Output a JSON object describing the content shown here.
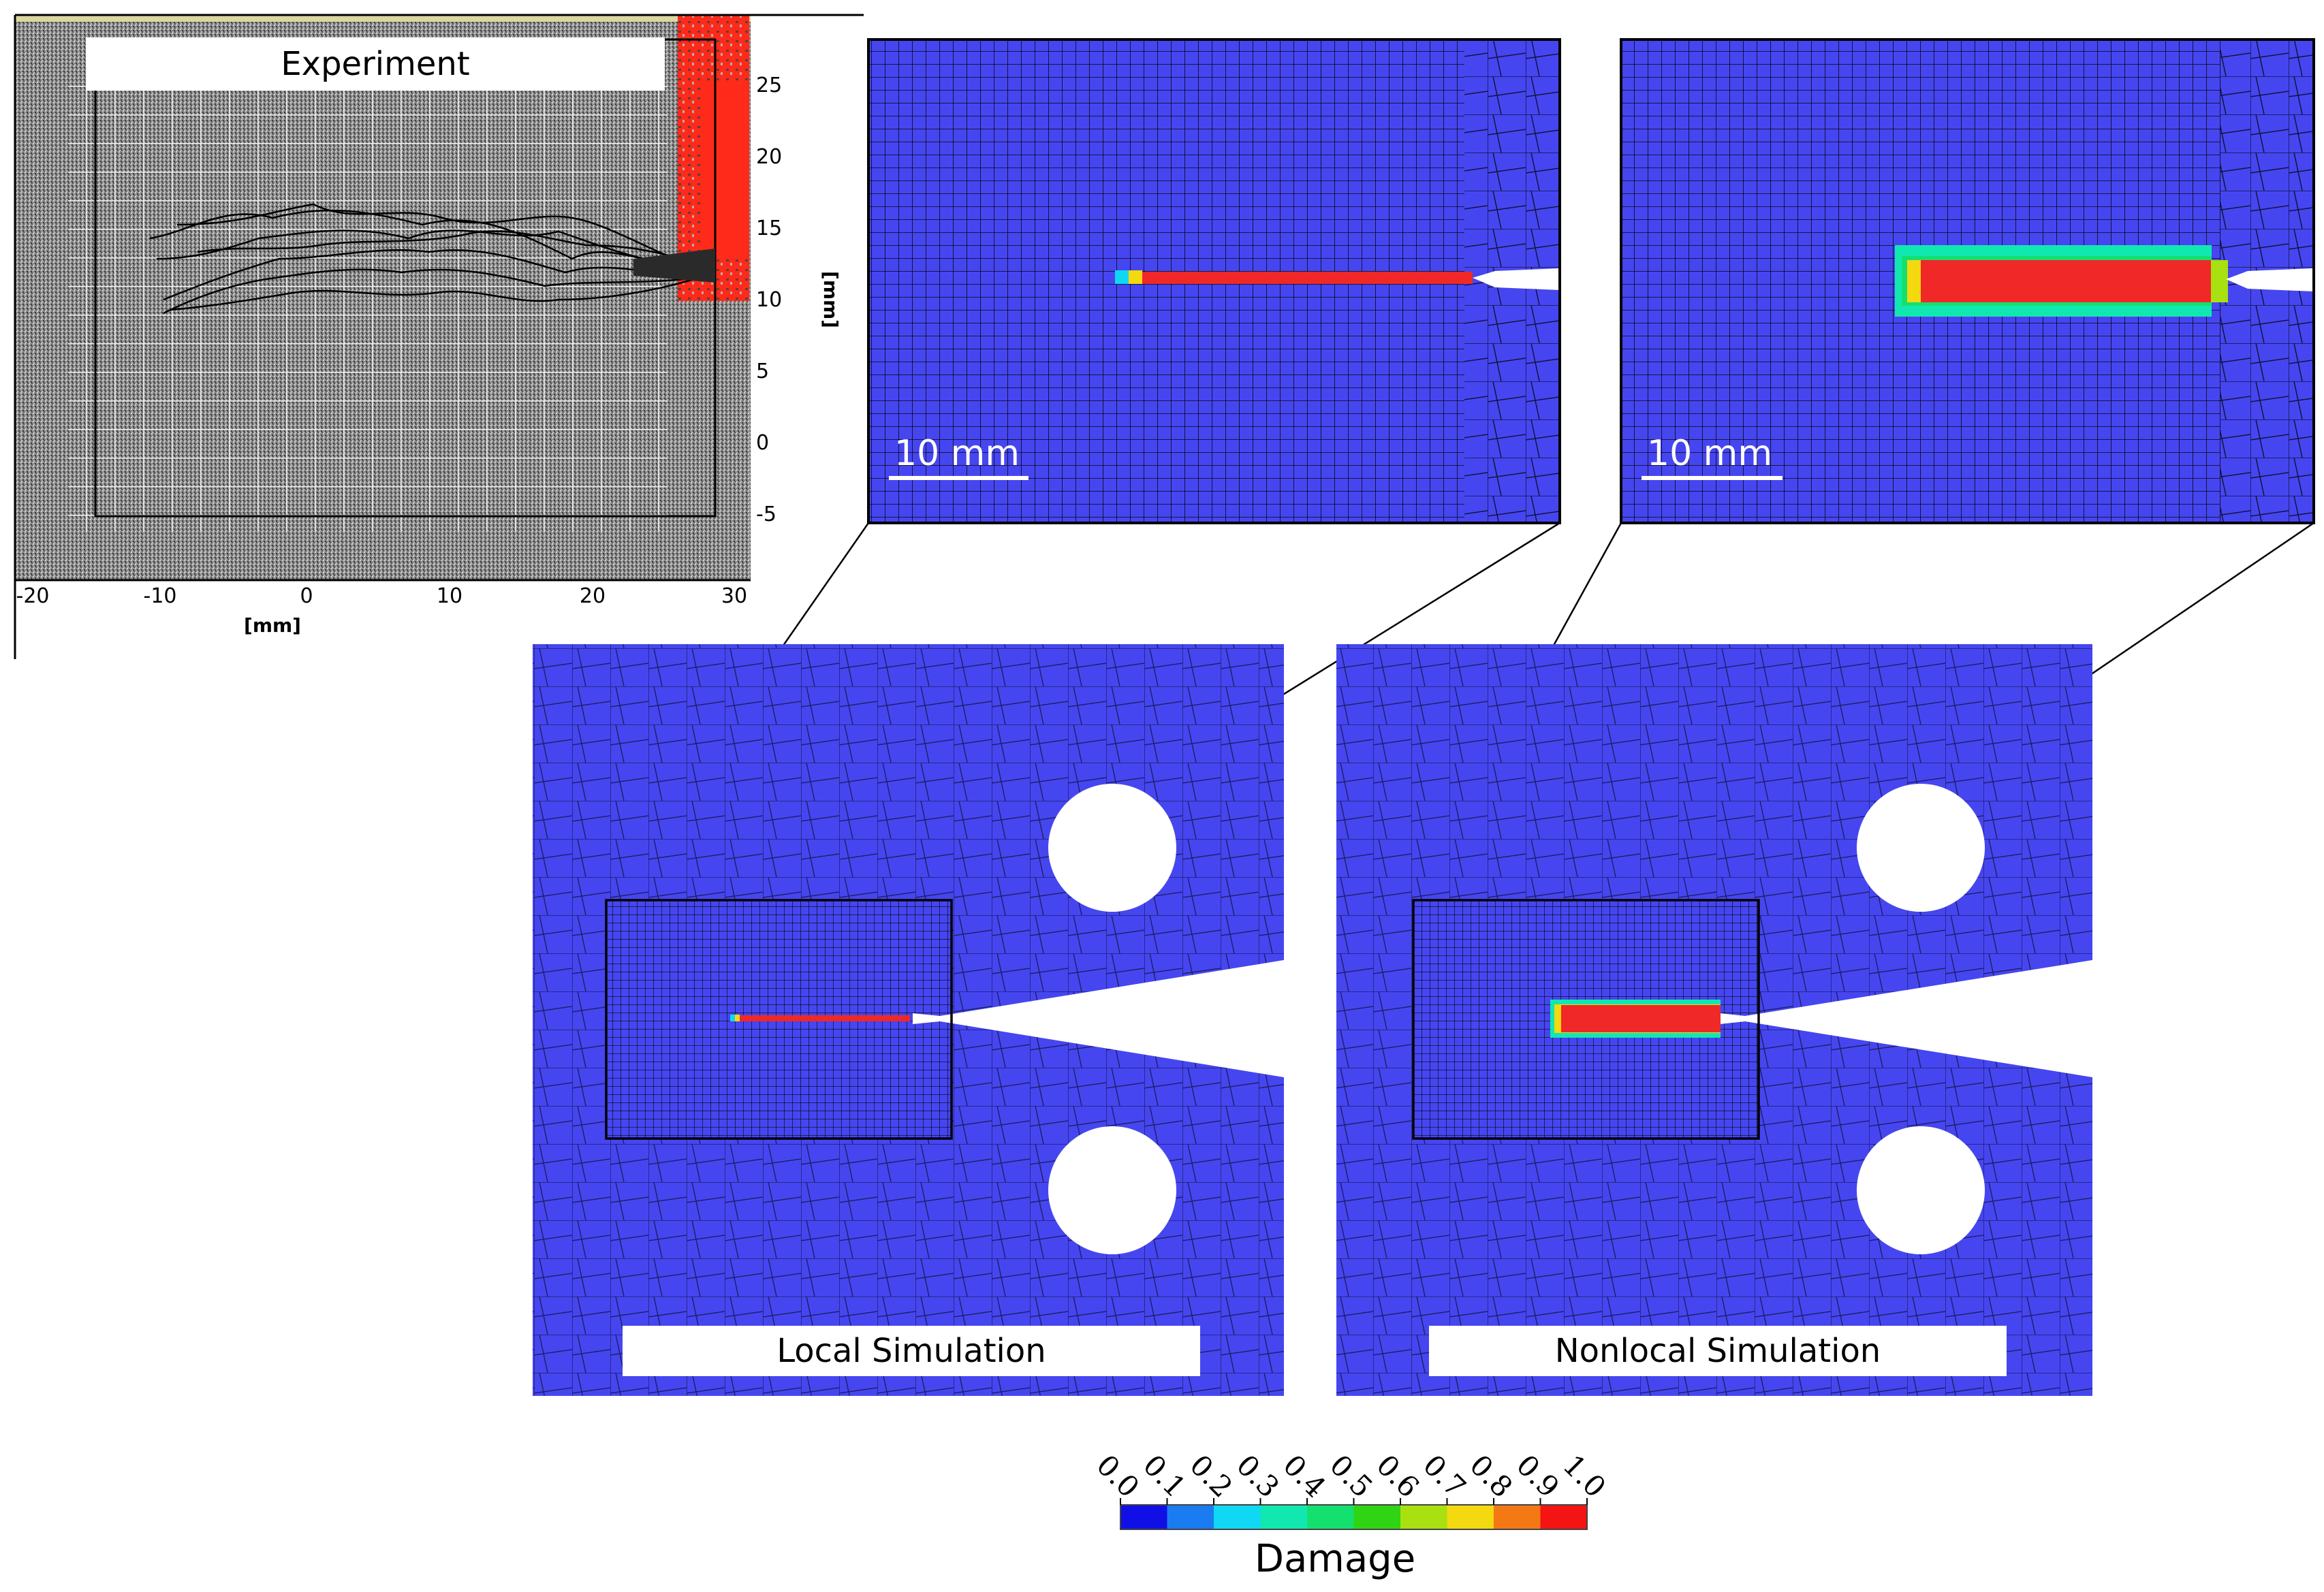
{
  "experiment": {
    "title": "Experiment",
    "x_ticks": [
      "-20",
      "-10",
      "0",
      "10",
      "20",
      "30"
    ],
    "y_ticks": [
      "25",
      "20",
      "15",
      "10",
      "5",
      "0",
      "-5"
    ],
    "x_unit": "[mm]",
    "y_unit": "[mm]"
  },
  "zoom_local": {
    "scale_label": "10 mm"
  },
  "zoom_nonlocal": {
    "scale_label": "10 mm"
  },
  "local_sim": {
    "title": "Local Simulation"
  },
  "nonlocal_sim": {
    "title": "Nonlocal Simulation"
  },
  "colorbar": {
    "title": "Damage",
    "ticks": [
      "0.0",
      "0.1",
      "0.2",
      "0.3",
      "0.4",
      "0.5",
      "0.6",
      "0.7",
      "0.8",
      "0.9",
      "1.0"
    ],
    "colors": [
      "#1010e6",
      "#1a7cf0",
      "#10d8f4",
      "#10e8b0",
      "#14e070",
      "#30d414",
      "#a8e010",
      "#f4d810",
      "#f47814",
      "#f41414"
    ]
  },
  "colors": {
    "specimen": "#4646f0",
    "crack": "#f02828",
    "mesh_line": "#050514"
  }
}
